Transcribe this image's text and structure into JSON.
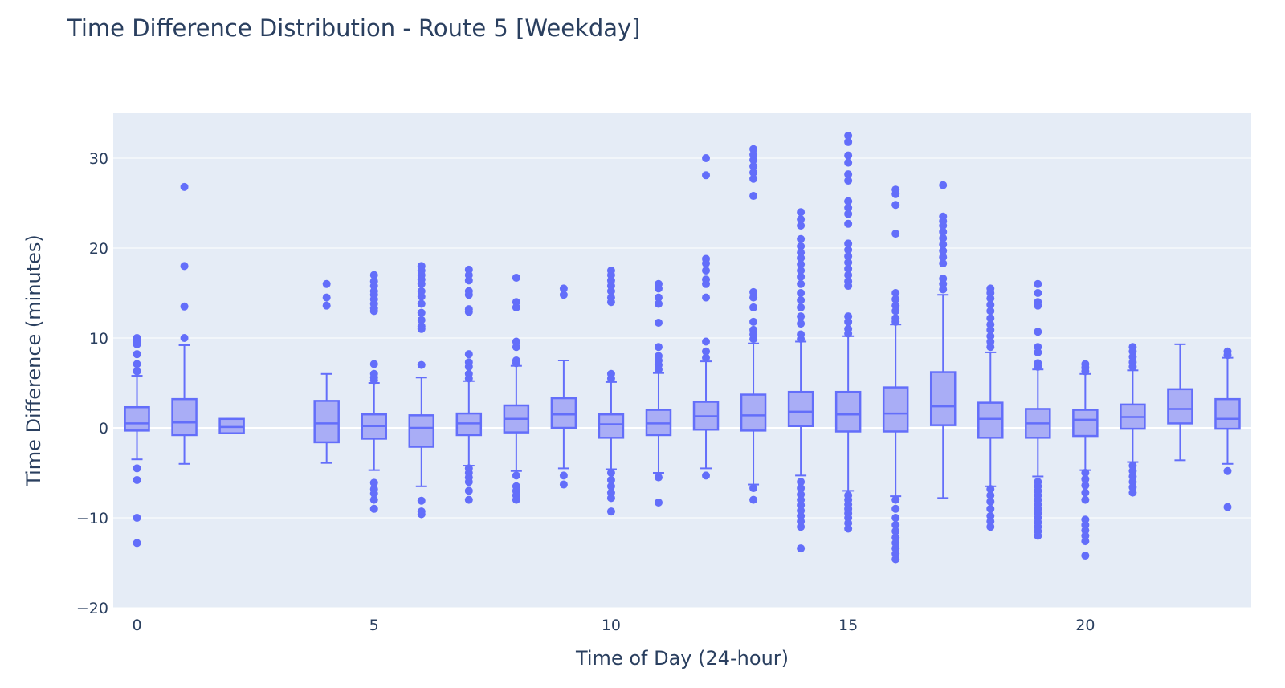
{
  "chart_data": {
    "type": "box",
    "title": "Time Difference Distribution - Route 5 [Weekday]",
    "xlabel": "Time of Day (24-hour)",
    "ylabel": "Time Difference (minutes)",
    "xlim": [
      -0.5,
      23.5
    ],
    "ylim": [
      -20,
      35
    ],
    "xticks": [
      {
        "value": 0,
        "label": "0"
      },
      {
        "value": 5,
        "label": "5"
      },
      {
        "value": 10,
        "label": "10"
      },
      {
        "value": 15,
        "label": "15"
      },
      {
        "value": 20,
        "label": "20"
      }
    ],
    "yticks": [
      {
        "value": -20,
        "label": "−20"
      },
      {
        "value": -10,
        "label": "−10"
      },
      {
        "value": 0,
        "label": "0"
      },
      {
        "value": 10,
        "label": "10"
      },
      {
        "value": 20,
        "label": "20"
      },
      {
        "value": 30,
        "label": "30"
      }
    ],
    "grid": true,
    "colors": {
      "box": "#636efa",
      "fill": "#a9adf6",
      "plot_bg": "#e5ecf6",
      "grid": "#ffffff",
      "text": "#2a3f5f"
    },
    "boxes": [
      {
        "x": 0,
        "q1": -0.3,
        "median": 0.5,
        "q3": 2.3,
        "lower": -3.5,
        "upper": 5.8,
        "outliers": [
          10.0,
          9.7,
          9.3,
          8.2,
          7.1,
          6.3,
          -4.5,
          -5.8,
          -10.0,
          -12.8
        ]
      },
      {
        "x": 1,
        "q1": -0.8,
        "median": 0.6,
        "q3": 3.2,
        "lower": -4.0,
        "upper": 9.2,
        "outliers": [
          26.8,
          18.0,
          13.5,
          10.0
        ]
      },
      {
        "x": 2,
        "q1": -0.6,
        "median": 0.1,
        "q3": 1.0,
        "lower": -0.6,
        "upper": 1.0,
        "outliers": []
      },
      {
        "x": 4,
        "q1": -1.6,
        "median": 0.5,
        "q3": 3.0,
        "lower": -3.9,
        "upper": 6.0,
        "outliers": [
          16.0,
          14.5,
          13.6
        ]
      },
      {
        "x": 5,
        "q1": -1.2,
        "median": 0.2,
        "q3": 1.5,
        "lower": -4.7,
        "upper": 5.0,
        "outliers": [
          17.0,
          16.3,
          15.8,
          15.2,
          14.8,
          14.3,
          13.8,
          13.3,
          13.0,
          7.1,
          6.0,
          5.6,
          5.3,
          -6.1,
          -6.8,
          -7.3,
          -8.0,
          -9.0
        ]
      },
      {
        "x": 6,
        "q1": -2.1,
        "median": 0.0,
        "q3": 1.4,
        "lower": -6.5,
        "upper": 5.6,
        "outliers": [
          18.0,
          17.5,
          17.0,
          16.5,
          16.0,
          15.2,
          14.6,
          13.8,
          12.8,
          12.0,
          11.3,
          11.0,
          7.0,
          -8.1,
          -9.3,
          -9.6
        ]
      },
      {
        "x": 7,
        "q1": -0.8,
        "median": 0.5,
        "q3": 1.6,
        "lower": -4.2,
        "upper": 5.2,
        "outliers": [
          17.6,
          17.0,
          16.4,
          15.2,
          14.8,
          13.2,
          12.9,
          8.2,
          7.3,
          6.8,
          6.0,
          5.5,
          -4.5,
          -5.0,
          -5.5,
          -6.0,
          -7.0,
          -8.0
        ]
      },
      {
        "x": 8,
        "q1": -0.5,
        "median": 1.0,
        "q3": 2.5,
        "lower": -4.8,
        "upper": 6.9,
        "outliers": [
          16.7,
          14.0,
          13.4,
          9.6,
          9.0,
          7.5,
          7.2,
          -5.3,
          -6.5,
          -7.0,
          -7.5,
          -8.0
        ]
      },
      {
        "x": 9,
        "q1": 0.0,
        "median": 1.5,
        "q3": 3.3,
        "lower": -4.5,
        "upper": 7.5,
        "outliers": [
          15.5,
          14.8,
          -5.3,
          -6.3
        ]
      },
      {
        "x": 10,
        "q1": -1.1,
        "median": 0.4,
        "q3": 1.5,
        "lower": -4.6,
        "upper": 5.1,
        "outliers": [
          17.5,
          17.0,
          16.4,
          15.8,
          15.2,
          14.5,
          14.0,
          6.0,
          5.5,
          -5.0,
          -5.8,
          -6.5,
          -7.2,
          -7.8,
          -9.3
        ]
      },
      {
        "x": 11,
        "q1": -0.8,
        "median": 0.5,
        "q3": 2.0,
        "lower": -5.0,
        "upper": 6.1,
        "outliers": [
          16.0,
          15.5,
          14.5,
          13.8,
          11.7,
          9.0,
          8.0,
          7.5,
          7.0,
          6.5,
          -5.5,
          -8.3
        ]
      },
      {
        "x": 12,
        "q1": -0.2,
        "median": 1.3,
        "q3": 2.9,
        "lower": -4.5,
        "upper": 7.4,
        "outliers": [
          30.0,
          28.1,
          18.8,
          18.3,
          17.5,
          16.5,
          16.0,
          14.5,
          9.6,
          8.5,
          7.8,
          -5.3
        ]
      },
      {
        "x": 13,
        "q1": -0.3,
        "median": 1.4,
        "q3": 3.7,
        "lower": -6.3,
        "upper": 9.4,
        "outliers": [
          31.0,
          30.4,
          29.8,
          29.1,
          28.4,
          27.7,
          25.8,
          15.1,
          14.5,
          13.4,
          11.8,
          10.9,
          10.4,
          9.9,
          -6.7,
          -8.0
        ]
      },
      {
        "x": 14,
        "q1": 0.2,
        "median": 1.8,
        "q3": 4.0,
        "lower": -5.3,
        "upper": 9.6,
        "outliers": [
          24.0,
          23.2,
          22.5,
          21.0,
          20.2,
          19.5,
          18.9,
          18.2,
          17.5,
          16.8,
          16.0,
          15.0,
          14.2,
          13.4,
          12.4,
          11.6,
          10.4,
          9.9,
          -6.0,
          -6.7,
          -7.4,
          -8.0,
          -8.6,
          -9.2,
          -9.8,
          -10.4,
          -11.0,
          -13.4
        ]
      },
      {
        "x": 15,
        "q1": -0.4,
        "median": 1.5,
        "q3": 4.0,
        "lower": -7.0,
        "upper": 10.2,
        "outliers": [
          32.5,
          31.8,
          30.3,
          29.5,
          28.2,
          27.5,
          25.2,
          24.5,
          23.8,
          22.7,
          20.5,
          19.8,
          19.1,
          18.4,
          17.7,
          17.0,
          16.3,
          15.8,
          12.4,
          11.8,
          11.0,
          10.5,
          -7.5,
          -8.0,
          -8.5,
          -9.0,
          -9.5,
          -10.0,
          -10.6,
          -11.2
        ]
      },
      {
        "x": 16,
        "q1": -0.4,
        "median": 1.6,
        "q3": 4.5,
        "lower": -7.6,
        "upper": 11.5,
        "outliers": [
          26.5,
          26.0,
          24.8,
          21.6,
          15.0,
          14.3,
          13.6,
          13.0,
          12.2,
          11.8,
          -8.0,
          -9.0,
          -10.0,
          -10.8,
          -11.5,
          -12.2,
          -12.8,
          -13.4,
          -14.0,
          -14.6
        ]
      },
      {
        "x": 17,
        "q1": 0.3,
        "median": 2.4,
        "q3": 6.2,
        "lower": -7.8,
        "upper": 14.8,
        "outliers": [
          27.0,
          23.5,
          23.0,
          22.5,
          21.8,
          21.1,
          20.4,
          19.7,
          19.0,
          18.3,
          16.6,
          16.0,
          15.4
        ]
      },
      {
        "x": 18,
        "q1": -1.1,
        "median": 1.0,
        "q3": 2.8,
        "lower": -6.5,
        "upper": 8.4,
        "outliers": [
          15.5,
          15.0,
          14.4,
          13.7,
          13.0,
          12.2,
          11.5,
          10.9,
          10.2,
          9.6,
          9.0,
          -6.8,
          -7.5,
          -8.2,
          -9.0,
          -9.8,
          -10.4,
          -11.0
        ]
      },
      {
        "x": 19,
        "q1": -1.1,
        "median": 0.5,
        "q3": 2.1,
        "lower": -5.4,
        "upper": 6.5,
        "outliers": [
          16.0,
          15.0,
          14.0,
          13.6,
          10.7,
          9.0,
          8.4,
          7.2,
          6.8,
          -6.0,
          -6.5,
          -7.0,
          -7.5,
          -8.0,
          -8.5,
          -9.0,
          -9.5,
          -10.0,
          -10.5,
          -11.0,
          -11.5,
          -12.0
        ]
      },
      {
        "x": 20,
        "q1": -0.9,
        "median": 0.9,
        "q3": 2.0,
        "lower": -4.7,
        "upper": 6.0,
        "outliers": [
          7.1,
          6.7,
          6.3,
          -5.0,
          -5.7,
          -6.4,
          -7.2,
          -8.0,
          -10.2,
          -10.8,
          -11.4,
          -12.0,
          -12.6,
          -14.2
        ]
      },
      {
        "x": 21,
        "q1": -0.1,
        "median": 1.2,
        "q3": 2.6,
        "lower": -3.8,
        "upper": 6.4,
        "outliers": [
          9.0,
          8.5,
          7.9,
          7.3,
          6.8,
          -4.2,
          -4.8,
          -5.4,
          -6.0,
          -6.6,
          -7.2
        ]
      },
      {
        "x": 22,
        "q1": 0.5,
        "median": 2.1,
        "q3": 4.3,
        "lower": -3.6,
        "upper": 9.3,
        "outliers": []
      },
      {
        "x": 23,
        "q1": -0.1,
        "median": 1.0,
        "q3": 3.2,
        "lower": -4.0,
        "upper": 7.8,
        "outliers": [
          8.5,
          8.1,
          -4.8,
          -8.8
        ]
      }
    ]
  }
}
